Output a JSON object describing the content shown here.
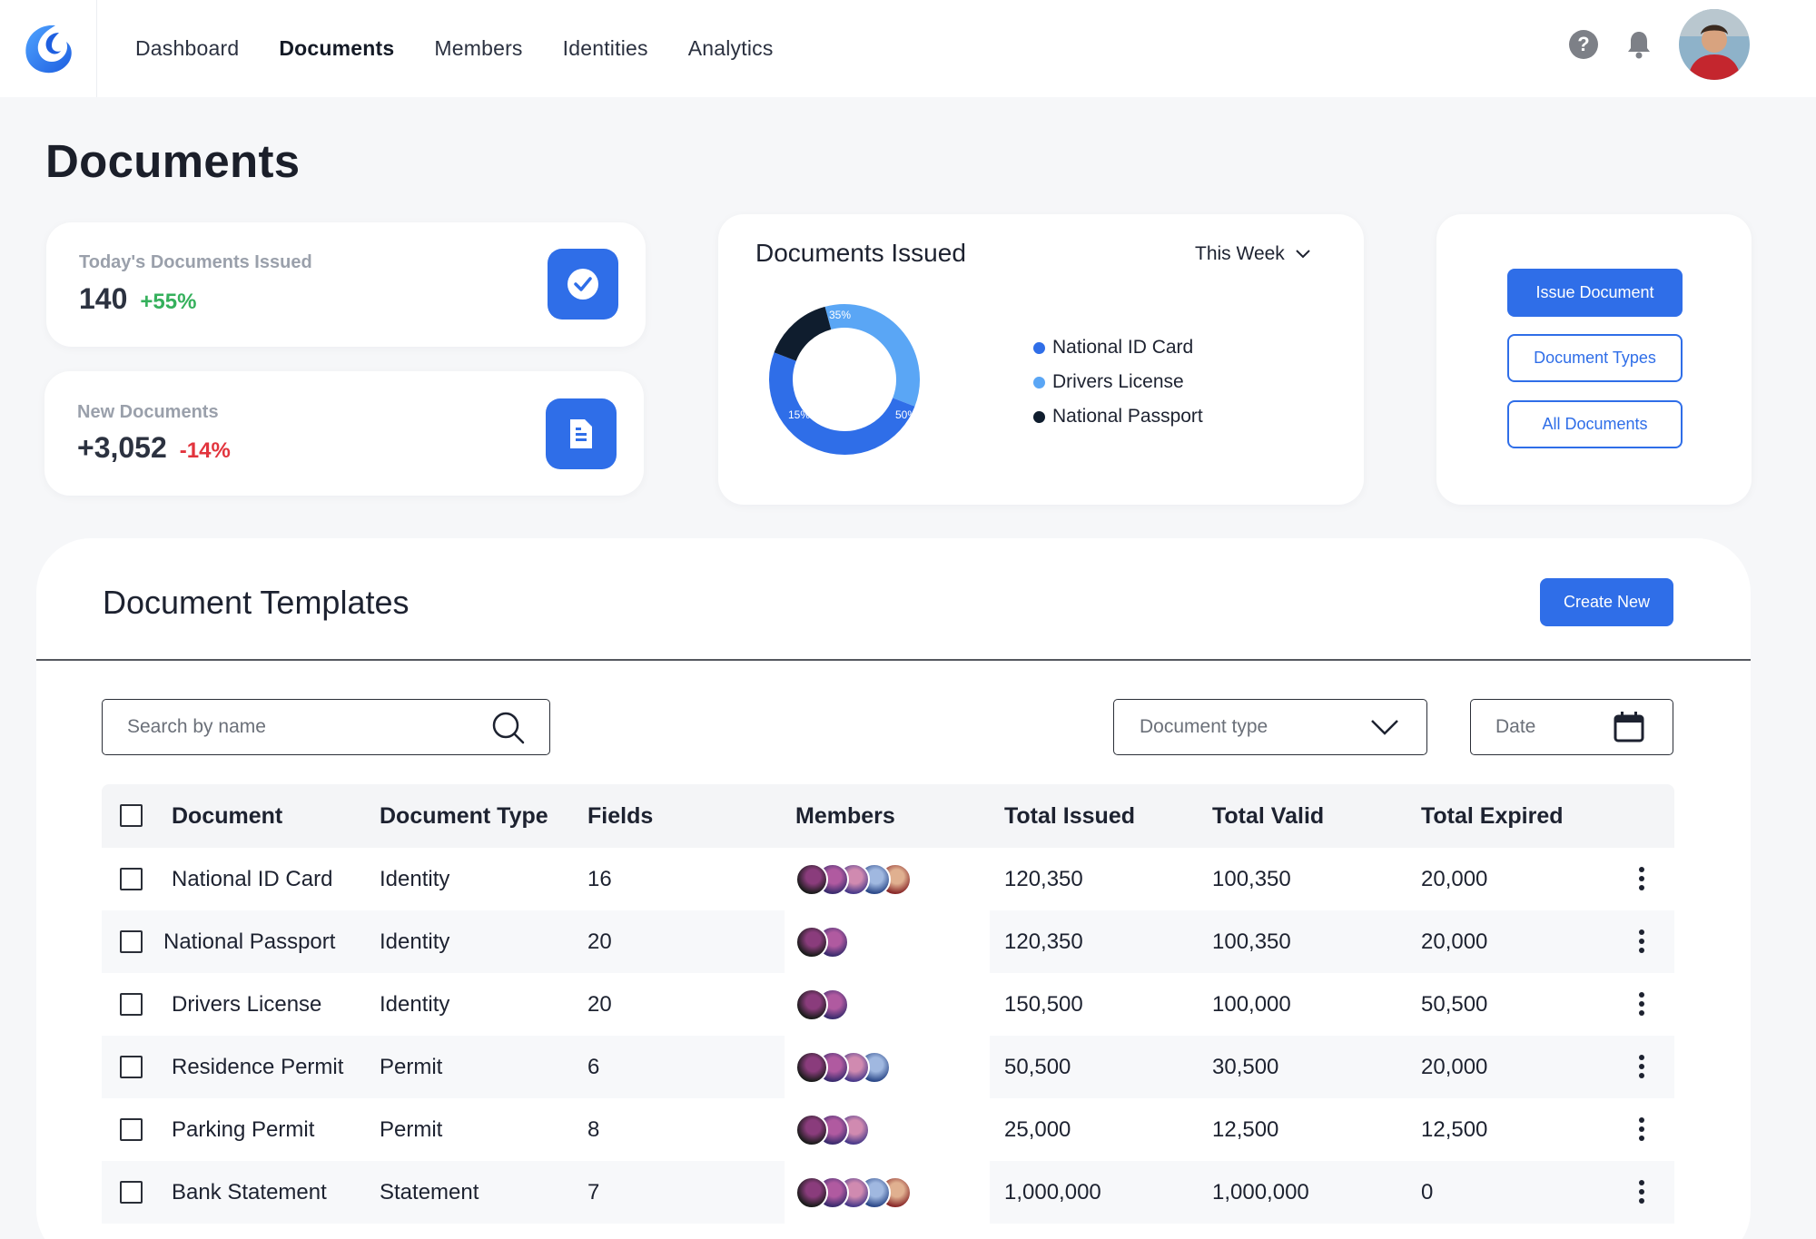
{
  "nav": {
    "items": [
      {
        "label": "Dashboard",
        "active": false
      },
      {
        "label": "Documents",
        "active": true
      },
      {
        "label": "Members",
        "active": false
      },
      {
        "label": "Identities",
        "active": false
      },
      {
        "label": "Analytics",
        "active": false
      }
    ],
    "help_glyph": "?"
  },
  "page": {
    "title": "Documents"
  },
  "stats": {
    "today": {
      "label": "Today's Documents Issued",
      "value": "140",
      "delta": "+55%",
      "icon": "check-circle-icon"
    },
    "new_docs": {
      "label": "New Documents",
      "value": "+3,052",
      "delta": "-14%",
      "icon": "document-icon"
    }
  },
  "issued_chart": {
    "title": "Documents Issued",
    "period": "This Week",
    "chart_data": {
      "type": "pie",
      "categories": [
        "National ID Card",
        "Drivers License",
        "National Passport"
      ],
      "values": [
        50,
        35,
        15
      ],
      "labels": [
        "50%",
        "35%",
        "15%"
      ],
      "colors": [
        "#2f6ee8",
        "#5aa6f5",
        "#0f1d2e"
      ],
      "legend": "right"
    }
  },
  "actions": {
    "issue": "Issue Document",
    "types": "Document Types",
    "all": "All Documents"
  },
  "templates": {
    "title": "Document Templates",
    "create": "Create New",
    "search_placeholder": "Search by name",
    "type_placeholder": "Document type",
    "date_placeholder": "Date",
    "columns": [
      "Document",
      "Document Type",
      "Fields",
      "Members",
      "Total Issued",
      "Total Valid",
      "Total Expired"
    ],
    "rows": [
      {
        "document": "National ID Card",
        "type": "Identity",
        "fields": "16",
        "members": 5,
        "issued": "120,350",
        "valid": "100,350",
        "expired": "20,000"
      },
      {
        "document": "National Passport",
        "type": "Identity",
        "fields": "20",
        "members": 2,
        "issued": "120,350",
        "valid": "100,350",
        "expired": "20,000"
      },
      {
        "document": "Drivers License",
        "type": "Identity",
        "fields": "20",
        "members": 2,
        "issued": "150,500",
        "valid": "100,000",
        "expired": "50,500"
      },
      {
        "document": "Residence Permit",
        "type": "Permit",
        "fields": "6",
        "members": 4,
        "issued": "50,500",
        "valid": "30,500",
        "expired": "20,000"
      },
      {
        "document": "Parking Permit",
        "type": "Permit",
        "fields": "8",
        "members": 3,
        "issued": "25,000",
        "valid": "12,500",
        "expired": "12,500"
      },
      {
        "document": "Bank Statement",
        "type": "Statement",
        "fields": "7",
        "members": 5,
        "issued": "1,000,000",
        "valid": "1,000,000",
        "expired": "0"
      }
    ]
  }
}
